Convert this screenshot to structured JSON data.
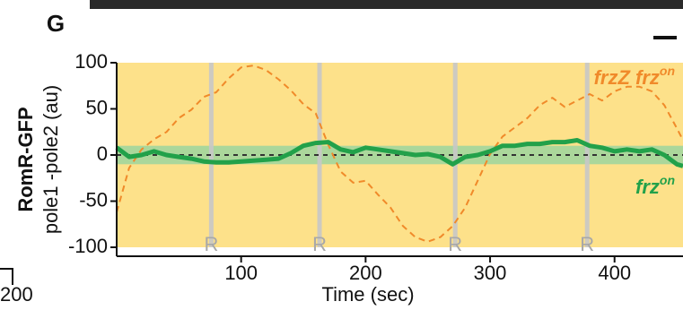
{
  "panel_label": "G",
  "side_label": "200",
  "chart_data": {
    "type": "line",
    "ylabel": "RomR-GFP",
    "ylabel_sub": "pole1 -pole2 (au)",
    "xlabel": "Time (sec)",
    "x": [
      0,
      10,
      20,
      30,
      40,
      50,
      60,
      70,
      80,
      90,
      100,
      110,
      120,
      130,
      140,
      150,
      160,
      170,
      180,
      190,
      200,
      210,
      220,
      230,
      240,
      250,
      260,
      270,
      280,
      290,
      300,
      310,
      320,
      330,
      340,
      350,
      360,
      370,
      380,
      390,
      400,
      410,
      420,
      430,
      440,
      450,
      455
    ],
    "series": [
      {
        "name": "frzZ frz",
        "name_sup": "on",
        "color": "#f08a2a",
        "dashed": true,
        "values": [
          -62,
          -14,
          6,
          17,
          25,
          40,
          49,
          63,
          68,
          83,
          95,
          97,
          92,
          82,
          70,
          55,
          45,
          11,
          -18,
          -30,
          -28,
          -43,
          -57,
          -77,
          -89,
          -94,
          -89,
          -77,
          -57,
          -28,
          1,
          20,
          30,
          40,
          54,
          62,
          52,
          59,
          66,
          59,
          69,
          74,
          74,
          69,
          54,
          29,
          16
        ]
      },
      {
        "name": "frz",
        "name_sup": "on",
        "color": "#22a14a",
        "dashed": false,
        "values": [
          8,
          -2,
          0,
          4,
          0,
          -2,
          -4,
          -7,
          -8,
          -8,
          -7,
          -6,
          -5,
          -4,
          2,
          10,
          13,
          14,
          6,
          3,
          8,
          6,
          4,
          2,
          0,
          1,
          -2,
          -10,
          -2,
          0,
          4,
          10,
          10,
          12,
          12,
          14,
          14,
          16,
          10,
          8,
          4,
          6,
          4,
          6,
          0,
          -10,
          -12
        ]
      }
    ],
    "reversals": [
      {
        "x": 76,
        "label": "R"
      },
      {
        "x": 163,
        "label": "R"
      },
      {
        "x": 272,
        "label": "R"
      },
      {
        "x": 378,
        "label": "R"
      }
    ],
    "band": [
      -10,
      10
    ],
    "xlim": [
      0,
      455
    ],
    "xticks": [
      100,
      200,
      300,
      400
    ],
    "ylim": [
      -100,
      100
    ],
    "yticks": [
      -100,
      -50,
      0,
      50,
      100
    ],
    "zero_line": true
  }
}
